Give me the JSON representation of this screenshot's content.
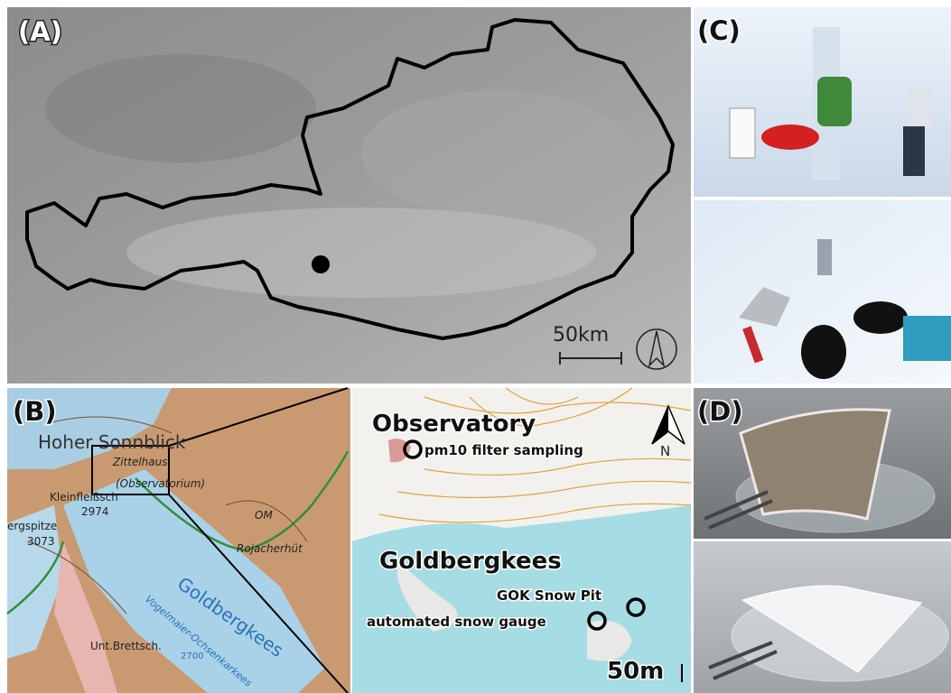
{
  "panel_a": {
    "label": "(A)",
    "scale": "50km"
  },
  "panel_b": {
    "label": "(B)",
    "map_labels": [
      "Hoher Sonnblick",
      "Zittelhaus",
      "(Observatorium)",
      "Kleinfleißsch",
      "2974",
      "ergspitze",
      "3073",
      "OM",
      "Rojacherhüt",
      "Goldbergkees",
      "Vogelmaier-Ochsenkarkees",
      "Unt.Brettsch.",
      "2700"
    ],
    "inset": {
      "title": "Observatory",
      "site": "pm10 filter sampling",
      "north": "N",
      "glacier": "Goldbergkees",
      "pit": "GOK Snow Pit",
      "gauge": "automated snow gauge",
      "scale": "50m"
    }
  },
  "panel_c": {
    "label": "(C)"
  },
  "panel_d": {
    "label": "(D)"
  }
}
